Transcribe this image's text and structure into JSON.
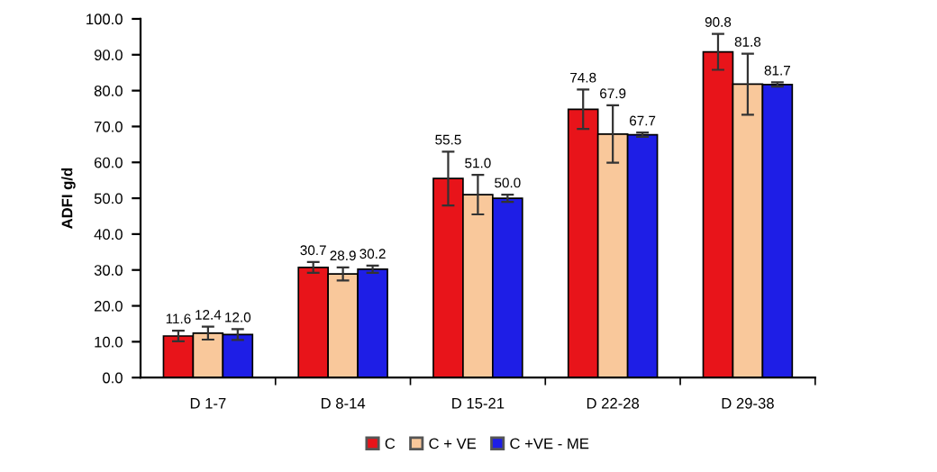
{
  "chart_data": {
    "type": "bar",
    "ylabel": "ADFI g/d",
    "categories": [
      "D 1-7",
      "D 8-14",
      "D 15-21",
      "D 22-28",
      "D 29-38"
    ],
    "series": [
      {
        "name": "C",
        "color": "#e8141a",
        "values": [
          11.6,
          30.7,
          55.5,
          74.8,
          90.8
        ],
        "errors": [
          1.5,
          1.5,
          7.5,
          5.5,
          5.0
        ],
        "value_labels": [
          "11.6",
          "30.7",
          "55.5",
          "74.8",
          "90.8"
        ]
      },
      {
        "name": "C + VE",
        "color": "#f9c89b",
        "values": [
          12.4,
          28.9,
          51.0,
          67.9,
          81.8
        ],
        "errors": [
          1.8,
          1.8,
          5.5,
          8.0,
          8.5
        ],
        "value_labels": [
          "12.4",
          "28.9",
          "51.0",
          "67.9",
          "81.8"
        ]
      },
      {
        "name": "C +VE - ME",
        "color": "#1e1ee6",
        "values": [
          12.0,
          30.2,
          50.0,
          67.7,
          81.7
        ],
        "errors": [
          1.5,
          1.0,
          1.0,
          0.6,
          0.6
        ],
        "value_labels": [
          "12.0",
          "30.2",
          "50.0",
          "67.7",
          "81.7"
        ]
      }
    ],
    "ylim": [
      0,
      100
    ],
    "yticks": [
      {
        "value": 0,
        "label": "0.0"
      },
      {
        "value": 10,
        "label": "10.0"
      },
      {
        "value": 20,
        "label": "20.0"
      },
      {
        "value": 30,
        "label": "30.0"
      },
      {
        "value": 40,
        "label": "40.0"
      },
      {
        "value": 50,
        "label": "50.0"
      },
      {
        "value": 60,
        "label": "60.0"
      },
      {
        "value": 70,
        "label": "70.0"
      },
      {
        "value": 80,
        "label": "80.0"
      },
      {
        "value": 90,
        "label": "90.0"
      },
      {
        "value": 100,
        "label": "100.0"
      }
    ],
    "legend": "bottom",
    "grid": false
  }
}
